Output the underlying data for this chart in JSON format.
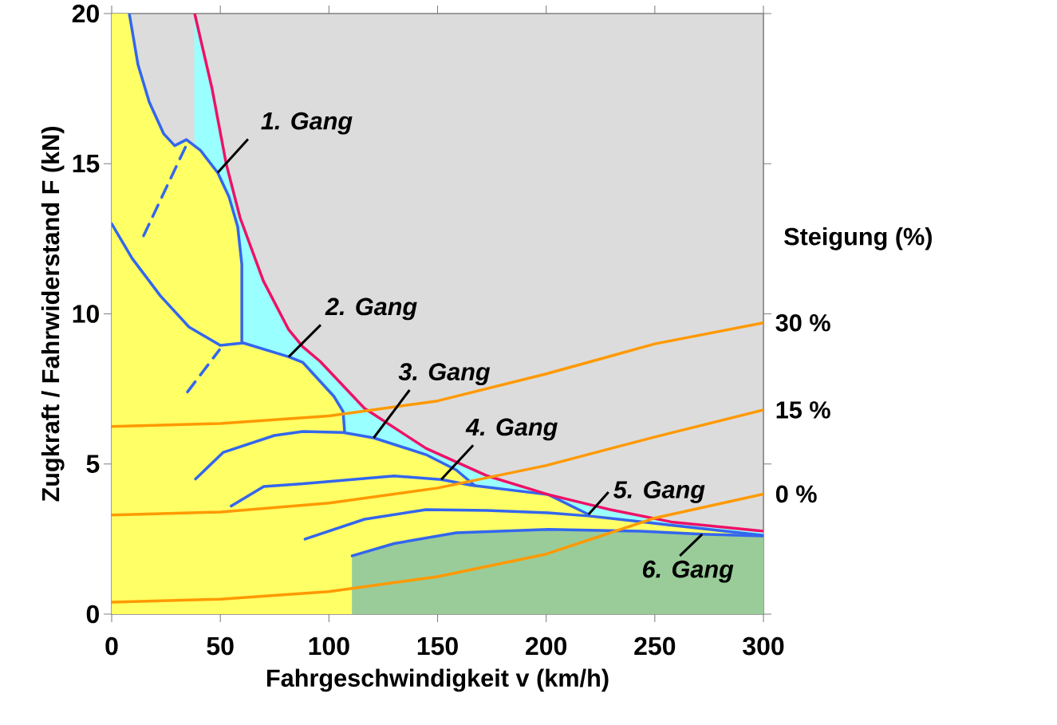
{
  "chart_data": {
    "type": "line",
    "xlabel": "Fahrgeschwindigkeit  v (km/h)",
    "ylabel": "Zugkraft / Fahrwiderstand  F (kN)",
    "legend_title": "Steigung (%)",
    "xlim": [
      0,
      300
    ],
    "ylim": [
      0,
      20
    ],
    "xticks": [
      0,
      50,
      100,
      150,
      200,
      250,
      300
    ],
    "yticks": [
      0,
      5,
      10,
      15,
      20
    ],
    "bands": [
      {
        "axis": "y",
        "from": 0,
        "to": 20,
        "color": "#dcdcdc"
      }
    ],
    "series": [
      {
        "type": "area",
        "color": "#99ffff",
        "x": [
          38.2,
          46.2,
          52.7,
          59.1,
          69.8,
          81.5,
          88,
          95.9,
          116.4,
          144.7,
          173,
          201,
          229.5,
          257.6,
          300
        ],
        "values": [
          20,
          17.5,
          15.0,
          13.2,
          11.1,
          9.47,
          8.9,
          8.42,
          6.85,
          5.52,
          4.6,
          3.98,
          3.48,
          3.07,
          2.76
        ]
      },
      {
        "type": "area",
        "color": "#ffff66",
        "x": [
          0,
          8.1,
          12.1,
          17.3,
          23.9,
          29,
          34.4,
          40.8,
          48.8,
          54,
          58,
          59.9,
          59.9,
          81.5,
          88,
          102.3,
          106.5,
          107.2
        ],
        "values": [
          20,
          20,
          18.3,
          17.05,
          16.0,
          15.6,
          15.8,
          15.45,
          14.7,
          13.9,
          12.9,
          11.65,
          9.08,
          8.57,
          8.38,
          7.25,
          6.75,
          6.08
        ]
      },
      {
        "type": "area",
        "color": "#ffff66",
        "x": [
          107.2,
          120.6,
          144.7,
          158.6,
          167,
          201,
          215,
          219.5,
          257.6,
          300
        ],
        "values": [
          6.08,
          5.87,
          5.31,
          4.8,
          4.29,
          3.98,
          3.48,
          3.32,
          2.96,
          2.6
        ]
      },
      {
        "type": "area",
        "color": "#99cc99",
        "x": [
          110.7,
          130,
          158.6,
          201,
          243.5,
          271.8,
          300
        ],
        "values": [
          1.94,
          2.35,
          2.71,
          2.82,
          2.76,
          2.66,
          2.6
        ]
      },
      {
        "color": "#3366ee",
        "x": [
          8.1,
          12.1,
          17.3,
          23.9,
          29,
          34.4,
          40.8,
          48.8,
          54,
          58,
          59.9,
          59.9
        ],
        "values": [
          20,
          18.3,
          17.05,
          16.0,
          15.6,
          15.8,
          15.45,
          14.7,
          13.9,
          12.9,
          11.65,
          9.08
        ]
      },
      {
        "color": "#3366ee",
        "x": [
          0,
          9.4,
          22.4,
          35.6,
          50,
          60.6,
          81.5,
          88,
          102.3,
          106.5,
          107.2
        ],
        "values": [
          13.0,
          11.85,
          10.6,
          9.56,
          8.95,
          9.03,
          8.57,
          8.38,
          7.25,
          6.75,
          6.08
        ]
      },
      {
        "color": "#3366ee",
        "x": [
          38.6,
          51.4,
          74.9,
          88,
          106.5,
          120.6,
          144.7,
          158.6,
          167
        ],
        "values": [
          4.5,
          5.39,
          5.95,
          6.08,
          6.05,
          5.87,
          5.31,
          4.8,
          4.29
        ]
      },
      {
        "color": "#3366ee",
        "x": [
          55,
          70,
          88,
          130,
          151.7,
          165.8,
          201,
          215,
          219.5
        ],
        "values": [
          3.6,
          4.25,
          4.34,
          4.6,
          4.48,
          4.29,
          3.98,
          3.48,
          3.32
        ]
      },
      {
        "color": "#3366ee",
        "x": [
          89,
          116.4,
          144.7,
          173,
          201,
          219.5,
          257.6,
          300
        ],
        "values": [
          2.5,
          3.16,
          3.48,
          3.45,
          3.37,
          3.27,
          2.96,
          2.62
        ]
      },
      {
        "color": "#3366ee",
        "x": [
          110.7,
          130,
          158.6,
          201,
          243.5,
          271.8,
          300
        ],
        "values": [
          1.94,
          2.35,
          2.71,
          2.82,
          2.76,
          2.66,
          2.6
        ]
      },
      {
        "color": "#3366ee",
        "line_style": "dashed",
        "x": [
          14.7,
          34.9
        ],
        "values": [
          12.6,
          15.7
        ]
      },
      {
        "color": "#3366ee",
        "line_style": "dashed",
        "x": [
          34.9,
          49.6
        ],
        "values": [
          7.4,
          8.8
        ]
      },
      {
        "color": "#ee1166",
        "x": [
          38.2,
          46.2,
          52.7,
          59.1,
          69.8,
          81.5,
          88,
          95.9,
          116.4,
          144.7,
          173,
          201,
          229.5,
          257.6,
          300
        ],
        "values": [
          20,
          17.5,
          15.0,
          13.2,
          11.1,
          9.47,
          8.9,
          8.42,
          6.85,
          5.52,
          4.6,
          3.98,
          3.48,
          3.07,
          2.76
        ]
      },
      {
        "color": "#ff9900",
        "name": "30 %",
        "x": [
          0,
          50,
          100,
          150,
          200,
          250,
          300
        ],
        "values": [
          6.25,
          6.35,
          6.6,
          7.1,
          8.0,
          9.0,
          9.7
        ]
      },
      {
        "color": "#ff9900",
        "name": "15 %",
        "x": [
          0,
          50,
          100,
          150,
          200,
          250,
          300
        ],
        "values": [
          3.3,
          3.4,
          3.7,
          4.2,
          4.95,
          5.9,
          6.8
        ]
      },
      {
        "color": "#ff9900",
        "name": "0 %",
        "x": [
          0,
          50,
          100,
          150,
          200,
          250,
          300
        ],
        "values": [
          0.4,
          0.5,
          0.75,
          1.25,
          2.0,
          3.2,
          4.0
        ]
      }
    ],
    "annotations": [
      {
        "text": "1. Gang",
        "x": 48.8,
        "y": 14.7
      },
      {
        "text": "2. Gang",
        "x": 81.5,
        "y": 8.57
      },
      {
        "text": "3. Gang",
        "x": 120.6,
        "y": 5.87
      },
      {
        "text": "4. Gang",
        "x": 151.7,
        "y": 4.48
      },
      {
        "text": "5. Gang",
        "x": 219.5,
        "y": 3.32
      },
      {
        "text": "6. Gang",
        "x": 271.8,
        "y": 2.66
      }
    ]
  }
}
